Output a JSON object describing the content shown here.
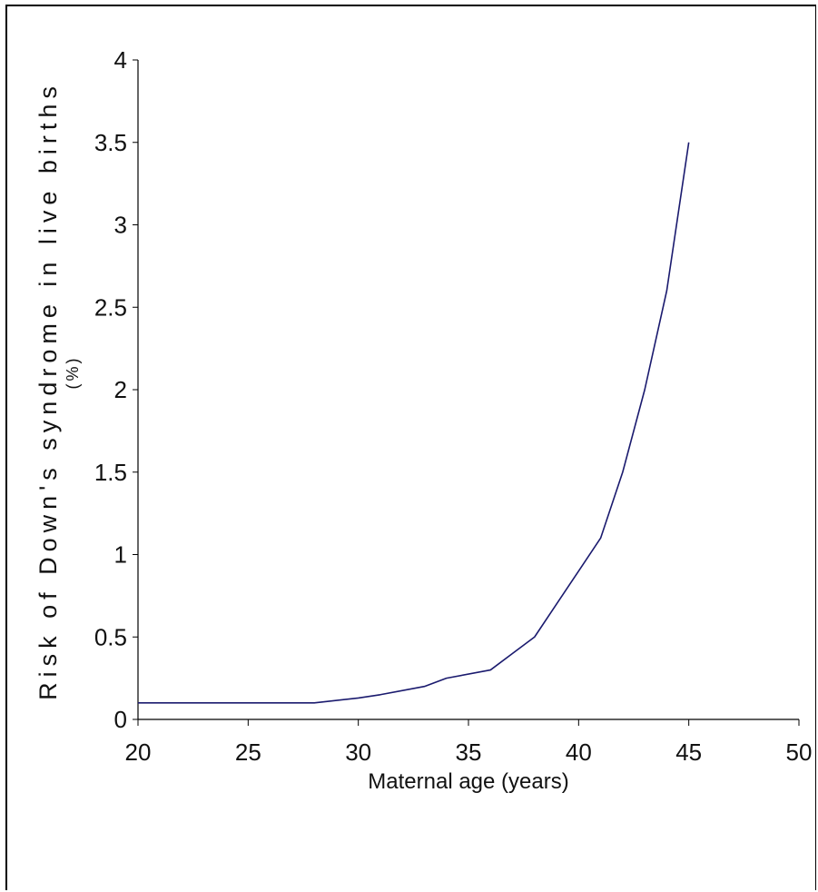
{
  "chart_data": {
    "type": "line",
    "xlabel": "Maternal age (years)",
    "ylabel": "Risk of Down's syndrome in live births",
    "ylabel_unit": "(%)",
    "xlim": [
      20,
      50
    ],
    "ylim": [
      0,
      4
    ],
    "x_ticks": [
      "20",
      "25",
      "30",
      "35",
      "40",
      "45",
      "50"
    ],
    "y_ticks": [
      "0",
      "0.5",
      "1",
      "1.5",
      "2",
      "2.5",
      "3",
      "3.5",
      "4"
    ],
    "grid": false,
    "series": [
      {
        "color": "#1a1a6e",
        "x": [
          20,
          28,
          30,
          31,
          33,
          34,
          36,
          37,
          38,
          39,
          40,
          41,
          42,
          43,
          44,
          45
        ],
        "y": [
          0.1,
          0.1,
          0.13,
          0.15,
          0.2,
          0.25,
          0.3,
          0.4,
          0.5,
          0.7,
          0.9,
          1.1,
          1.5,
          2.0,
          2.6,
          3.5
        ]
      }
    ]
  }
}
